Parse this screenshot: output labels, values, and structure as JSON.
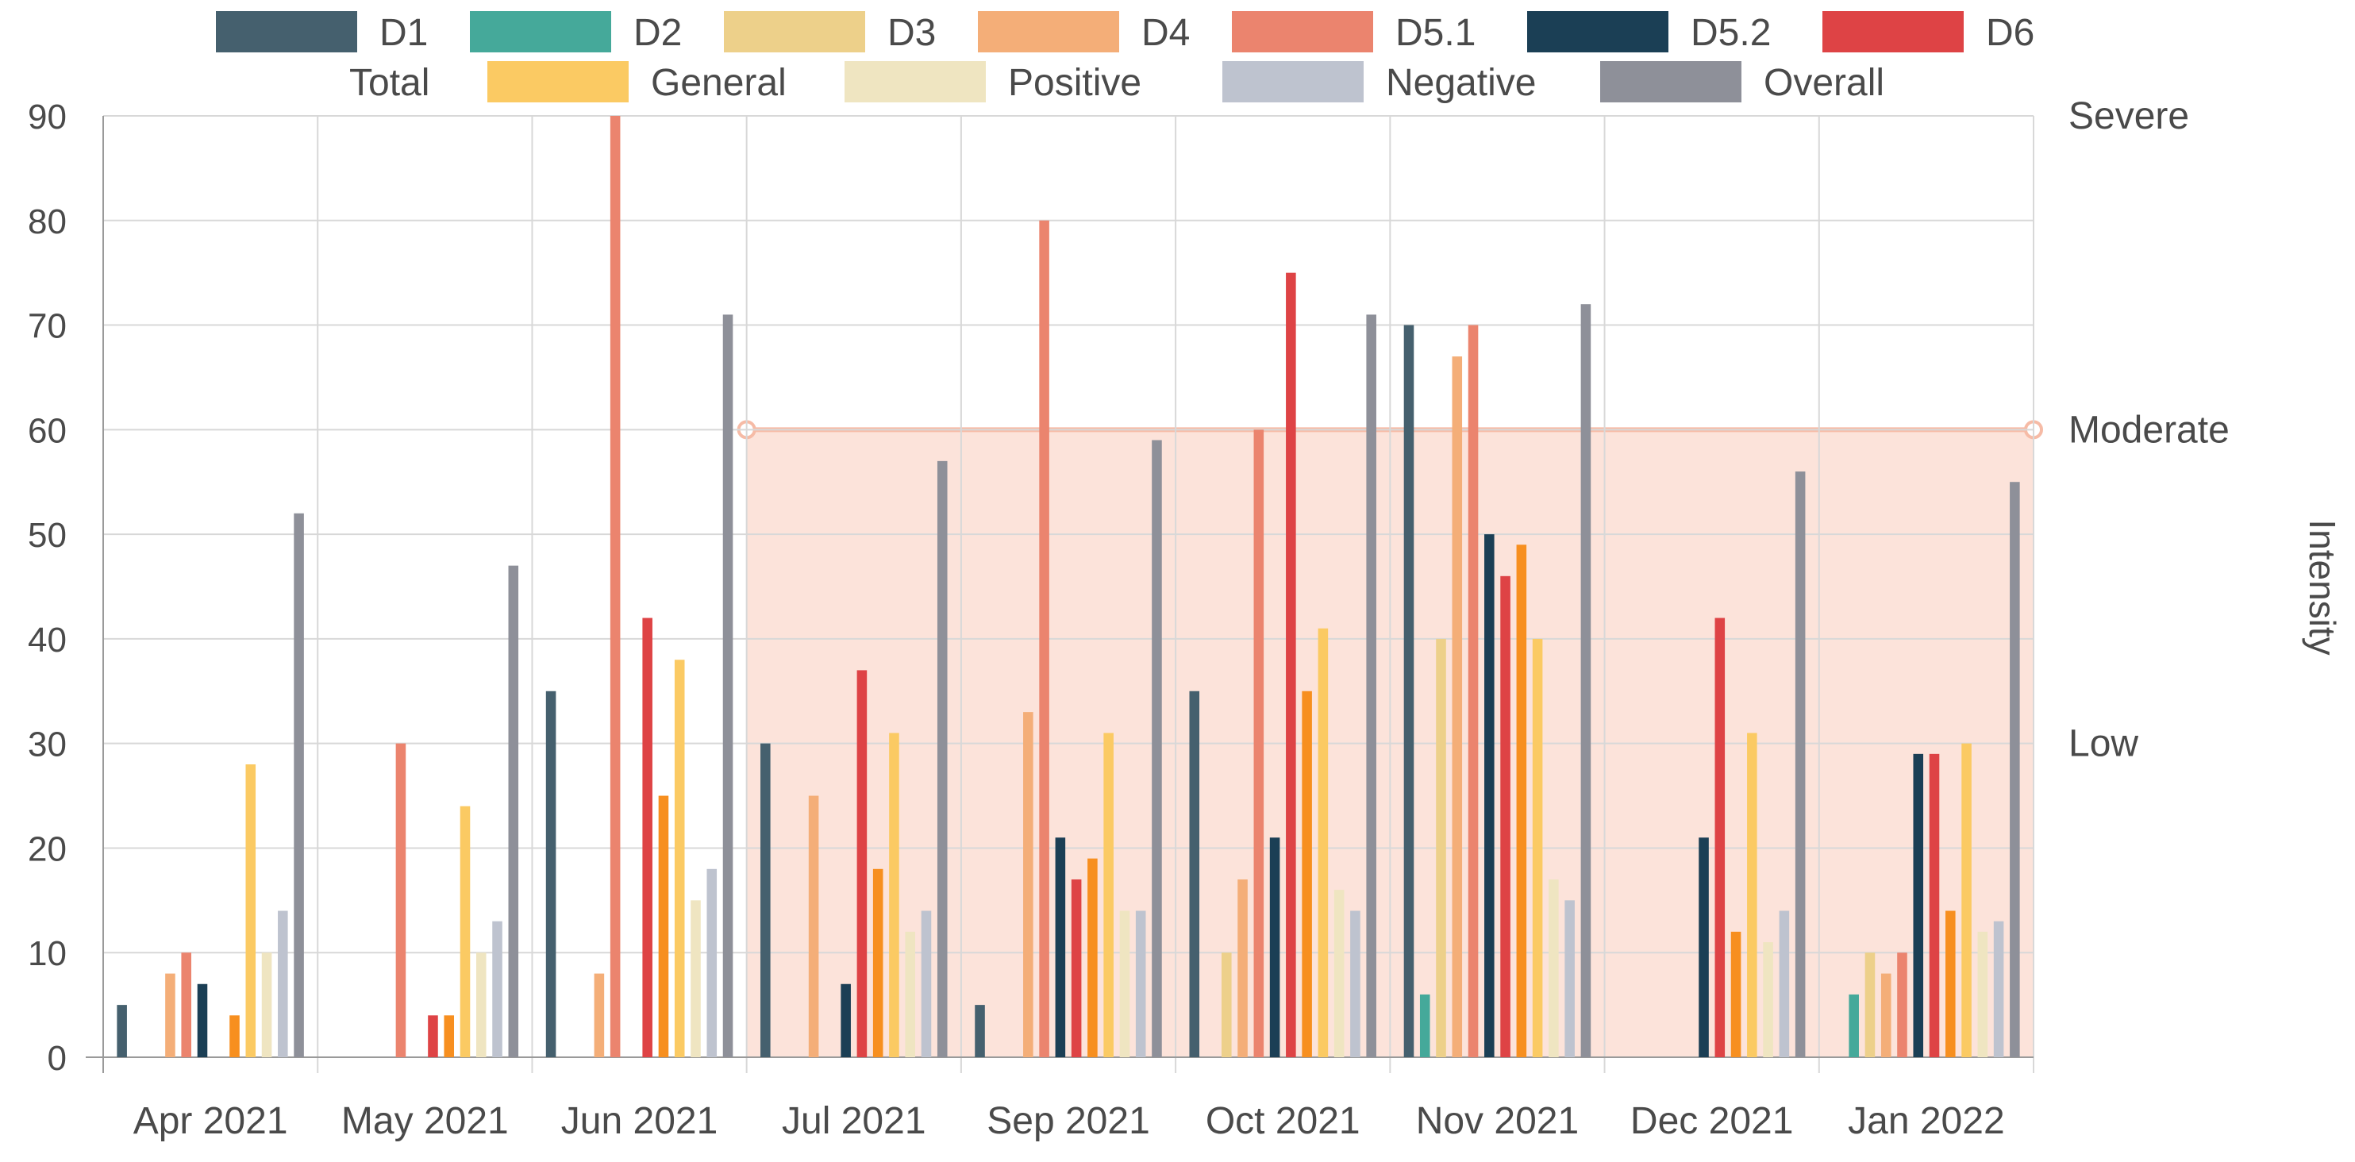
{
  "chart_data": {
    "type": "bar",
    "categories": [
      "Apr 2021",
      "May 2021",
      "Jun 2021",
      "Jul 2021",
      "Sep 2021",
      "Oct 2021",
      "Nov 2021",
      "Dec 2021",
      "Jan 2022"
    ],
    "ylim": [
      0,
      90
    ],
    "yticks": [
      0,
      10,
      20,
      30,
      40,
      50,
      60,
      70,
      80,
      90
    ],
    "ylabel": "Intensity",
    "grid": true,
    "legend_position": "top",
    "right_axis_labels": [
      "Severe",
      "Moderate",
      "Low"
    ],
    "band": {
      "from_category": "Jul 2021",
      "to_category": "Jan 2022",
      "y_top": 60,
      "y_bottom": 0,
      "color": "#fce3da",
      "line_color": "#f6bba6"
    },
    "series": [
      {
        "name": "D1",
        "color": "#45606e",
        "values": [
          5,
          0,
          35,
          30,
          5,
          35,
          70,
          0,
          0
        ]
      },
      {
        "name": "D2",
        "color": "#45a99a",
        "values": [
          0,
          0,
          0,
          0,
          0,
          0,
          6,
          0,
          6
        ]
      },
      {
        "name": "D3",
        "color": "#edd08a",
        "values": [
          0,
          0,
          0,
          0,
          0,
          10,
          40,
          0,
          10
        ]
      },
      {
        "name": "D4",
        "color": "#f4ae78",
        "values": [
          8,
          0,
          8,
          25,
          33,
          17,
          67,
          0,
          8
        ]
      },
      {
        "name": "D5.1",
        "color": "#eb846e",
        "values": [
          10,
          30,
          90,
          0,
          80,
          60,
          70,
          0,
          10
        ]
      },
      {
        "name": "D5.2",
        "color": "#1b3f55",
        "values": [
          7,
          0,
          0,
          7,
          21,
          21,
          50,
          21,
          29
        ]
      },
      {
        "name": "D6",
        "color": "#de4345",
        "values": [
          0,
          4,
          42,
          37,
          17,
          75,
          46,
          42,
          29
        ]
      },
      {
        "name": "Total",
        "color": "#f78f1f",
        "values": [
          4,
          4,
          25,
          18,
          19,
          35,
          49,
          12,
          14
        ]
      },
      {
        "name": "General",
        "color": "#fbca63",
        "values": [
          28,
          24,
          38,
          31,
          31,
          41,
          40,
          31,
          30
        ]
      },
      {
        "name": "Positive",
        "color": "#efe5c1",
        "values": [
          10,
          10,
          15,
          12,
          14,
          16,
          17,
          11,
          12
        ]
      },
      {
        "name": "Negative",
        "color": "#bec3cf",
        "values": [
          14,
          13,
          18,
          14,
          14,
          14,
          15,
          14,
          13
        ]
      },
      {
        "name": "Overall",
        "color": "#8e9099",
        "values": [
          52,
          47,
          71,
          57,
          59,
          71,
          72,
          56,
          55
        ]
      }
    ]
  }
}
